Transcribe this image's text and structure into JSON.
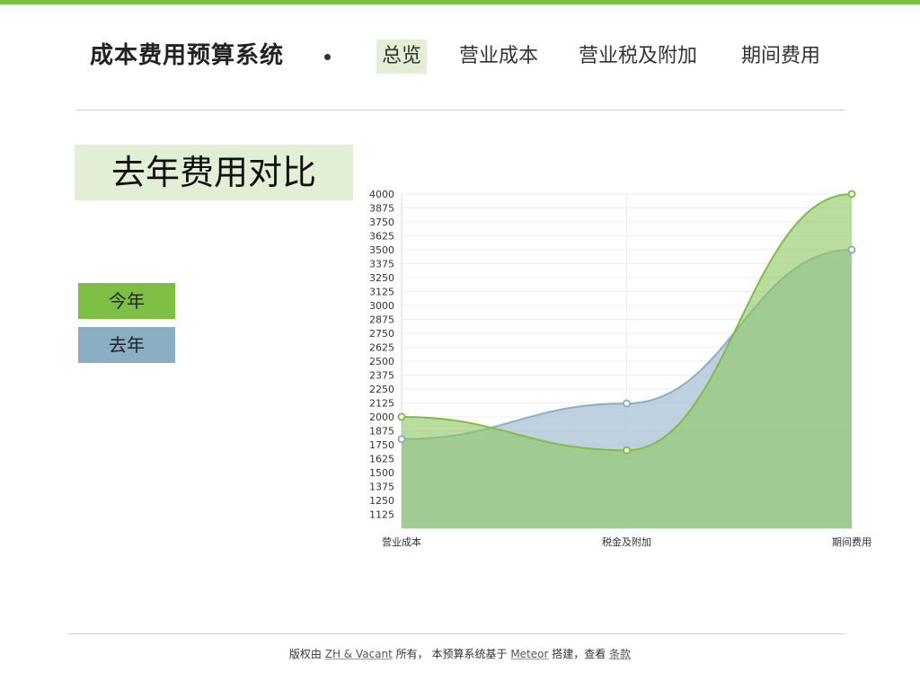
{
  "brand": {
    "title": "成本费用预算系统"
  },
  "nav": {
    "items": [
      {
        "label": "总览",
        "active": true
      },
      {
        "label": "营业成本",
        "active": false
      },
      {
        "label": "营业税及附加",
        "active": false
      },
      {
        "label": "期间费用",
        "active": false
      }
    ]
  },
  "section": {
    "title": "去年费用对比"
  },
  "legend": {
    "items": [
      {
        "label": "今年",
        "color": "#7dbe44"
      },
      {
        "label": "去年",
        "color": "#8aafc4"
      }
    ]
  },
  "colors": {
    "accent": "#7dbe44",
    "this_year_fill": "#8cc65f",
    "this_year_line": "#7dbe44",
    "last_year_fill": "#a9c2d3",
    "last_year_line": "#8aafc4",
    "highlight_bg": "#e2efd5"
  },
  "chart_data": {
    "type": "area",
    "categories": [
      "营业成本",
      "税金及附加",
      "期间费用"
    ],
    "series": [
      {
        "name": "今年",
        "values": [
          2000,
          1700,
          4000
        ]
      },
      {
        "name": "去年",
        "values": [
          1800,
          2120,
          3500
        ]
      }
    ],
    "ylim": [
      1000,
      4000
    ],
    "yticks": [
      4000,
      3875,
      3750,
      3625,
      3500,
      3375,
      3250,
      3125,
      3000,
      2875,
      2750,
      2625,
      2500,
      2375,
      2250,
      2125,
      2000,
      1875,
      1750,
      1625,
      1500,
      1375,
      1250,
      1125
    ],
    "grid": true
  },
  "footer": {
    "text1": "版权由 ",
    "link1": "ZH & Vacant",
    "text2": " 所有，  本预算系统基于 ",
    "link2": "Meteor",
    "text3": " 搭建，查看 ",
    "link3": "条款"
  }
}
